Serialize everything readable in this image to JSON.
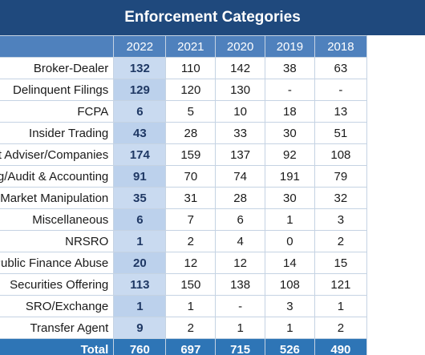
{
  "title": "Enforcement Categories",
  "years": [
    "2022",
    "2021",
    "2020",
    "2019",
    "2018"
  ],
  "rows": [
    {
      "category": "Broker-Dealer",
      "values": [
        "132",
        "110",
        "142",
        "38",
        "63"
      ]
    },
    {
      "category": "Delinquent Filings",
      "values": [
        "129",
        "120",
        "130",
        "-",
        "-"
      ]
    },
    {
      "category": "FCPA",
      "values": [
        "6",
        "5",
        "10",
        "18",
        "13"
      ]
    },
    {
      "category": "Insider Trading",
      "values": [
        "43",
        "28",
        "33",
        "30",
        "51"
      ]
    },
    {
      "category": "ment Adviser/Companies",
      "values": [
        "174",
        "159",
        "137",
        "92",
        "108"
      ]
    },
    {
      "category": "orting/Audit & Accounting",
      "values": [
        "91",
        "70",
        "74",
        "191",
        "79"
      ]
    },
    {
      "category": "Market Manipulation",
      "values": [
        "35",
        "31",
        "28",
        "30",
        "32"
      ]
    },
    {
      "category": "Miscellaneous",
      "values": [
        "6",
        "7",
        "6",
        "1",
        "3"
      ]
    },
    {
      "category": "NRSRO",
      "values": [
        "1",
        "2",
        "4",
        "0",
        "2"
      ]
    },
    {
      "category": "Public Finance Abuse",
      "values": [
        "20",
        "12",
        "12",
        "14",
        "15"
      ]
    },
    {
      "category": "Securities Offering",
      "values": [
        "113",
        "150",
        "138",
        "108",
        "121"
      ]
    },
    {
      "category": "SRO/Exchange",
      "values": [
        "1",
        "1",
        "-",
        "3",
        "1"
      ]
    },
    {
      "category": "Transfer Agent",
      "values": [
        "9",
        "2",
        "1",
        "1",
        "2"
      ]
    }
  ],
  "total": {
    "label": "Total",
    "values": [
      "760",
      "697",
      "715",
      "526",
      "490"
    ]
  },
  "colors": {
    "title_bg": "#1f497d",
    "header_bg": "#4f81bd",
    "highlight_col": "#c9daf0",
    "total_bg": "#2e75b6"
  }
}
